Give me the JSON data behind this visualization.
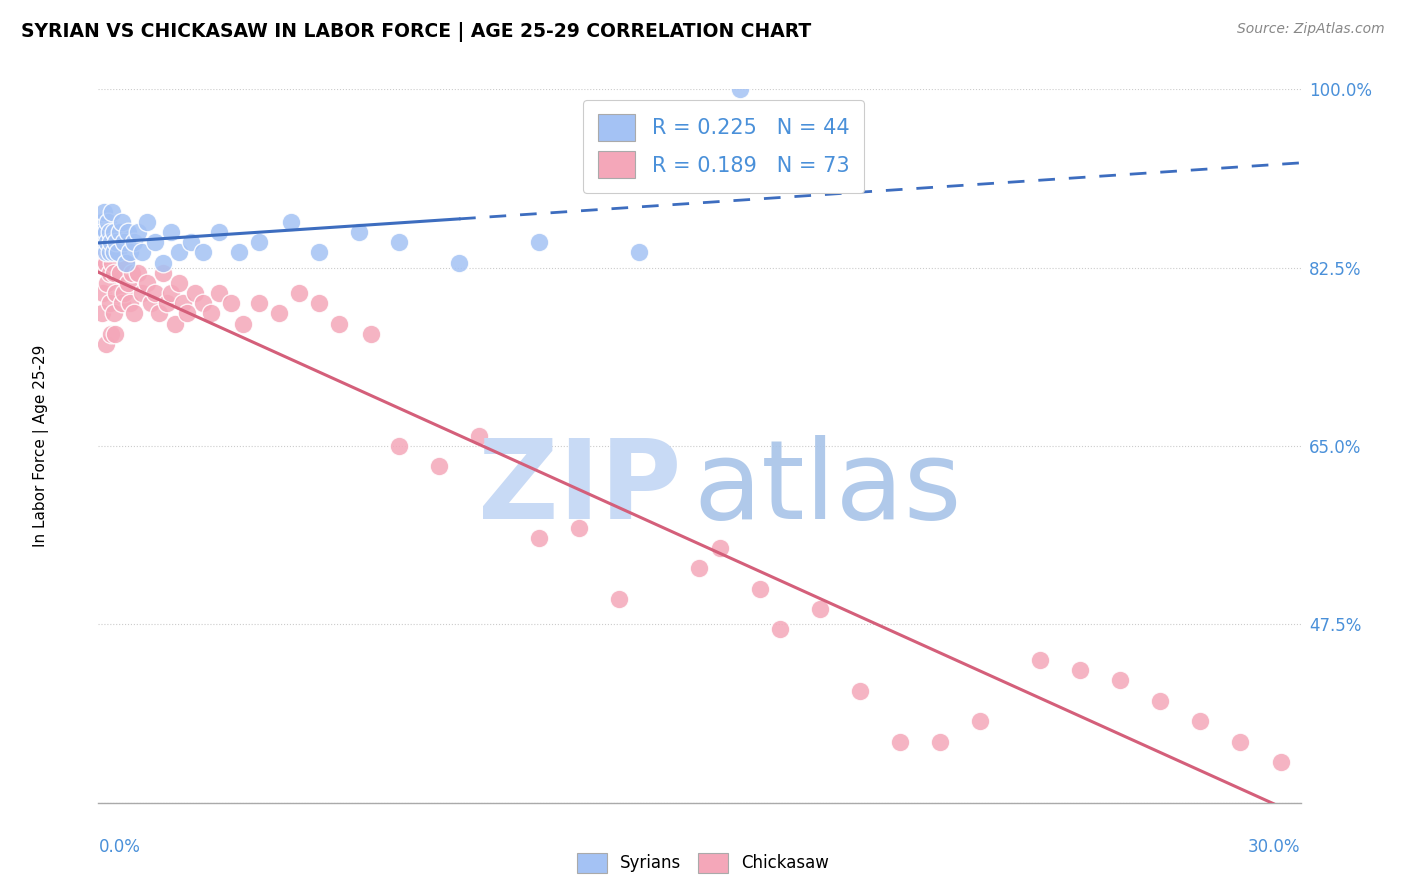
{
  "title": "SYRIAN VS CHICKASAW IN LABOR FORCE | AGE 25-29 CORRELATION CHART",
  "source": "Source: ZipAtlas.com",
  "ylabel": "In Labor Force | Age 25-29",
  "xmin": 0.0,
  "xmax": 30.0,
  "ymin": 30.0,
  "ymax": 100.0,
  "yticks": [
    47.5,
    65.0,
    82.5,
    100.0
  ],
  "R_syrian": 0.225,
  "N_syrian": 44,
  "R_chickasaw": 0.189,
  "N_chickasaw": 73,
  "color_syrian": "#a4c2f4",
  "color_chickasaw": "#f4a7b9",
  "color_syrian_line": "#3d6dbf",
  "color_chickasaw_line": "#d45f7a",
  "watermark_zip_color": "#c8daf5",
  "watermark_atlas_color": "#a8c4e8",
  "syrian_x": [
    0.05,
    0.08,
    0.1,
    0.12,
    0.15,
    0.18,
    0.2,
    0.22,
    0.25,
    0.28,
    0.3,
    0.32,
    0.35,
    0.38,
    0.4,
    0.45,
    0.5,
    0.55,
    0.6,
    0.65,
    0.7,
    0.75,
    0.8,
    0.9,
    1.0,
    1.1,
    1.2,
    1.4,
    1.6,
    1.8,
    2.0,
    2.3,
    2.6,
    3.0,
    3.5,
    4.0,
    4.8,
    5.5,
    6.5,
    7.5,
    9.0,
    11.0,
    13.5,
    16.0
  ],
  "syrian_y": [
    86,
    85,
    87,
    86,
    88,
    84,
    86,
    85,
    87,
    84,
    86,
    85,
    88,
    84,
    86,
    85,
    84,
    86,
    87,
    85,
    83,
    86,
    84,
    85,
    86,
    84,
    87,
    85,
    83,
    86,
    84,
    85,
    84,
    86,
    84,
    85,
    87,
    84,
    86,
    85,
    83,
    85,
    84,
    100
  ],
  "chickasaw_x": [
    0.05,
    0.08,
    0.1,
    0.12,
    0.15,
    0.18,
    0.2,
    0.22,
    0.25,
    0.28,
    0.3,
    0.32,
    0.35,
    0.38,
    0.4,
    0.42,
    0.45,
    0.5,
    0.55,
    0.6,
    0.65,
    0.7,
    0.75,
    0.8,
    0.85,
    0.9,
    1.0,
    1.1,
    1.2,
    1.3,
    1.4,
    1.5,
    1.6,
    1.7,
    1.8,
    1.9,
    2.0,
    2.1,
    2.2,
    2.4,
    2.6,
    2.8,
    3.0,
    3.3,
    3.6,
    4.0,
    4.5,
    5.0,
    5.5,
    6.0,
    6.8,
    7.5,
    8.5,
    9.5,
    11.0,
    13.0,
    15.0,
    17.0,
    19.0,
    21.0,
    22.0,
    23.5,
    24.5,
    25.5,
    26.5,
    27.5,
    28.5,
    29.5,
    15.5,
    16.5,
    18.0,
    20.0,
    12.0
  ],
  "chickasaw_y": [
    84,
    78,
    83,
    80,
    85,
    75,
    83,
    81,
    84,
    79,
    82,
    76,
    83,
    78,
    82,
    76,
    80,
    84,
    82,
    79,
    80,
    83,
    81,
    79,
    82,
    78,
    82,
    80,
    81,
    79,
    80,
    78,
    82,
    79,
    80,
    77,
    81,
    79,
    78,
    80,
    79,
    78,
    80,
    79,
    77,
    79,
    78,
    80,
    79,
    77,
    76,
    65,
    63,
    66,
    56,
    50,
    53,
    47,
    41,
    36,
    38,
    44,
    43,
    42,
    40,
    38,
    36,
    34,
    55,
    51,
    49,
    36,
    57
  ]
}
